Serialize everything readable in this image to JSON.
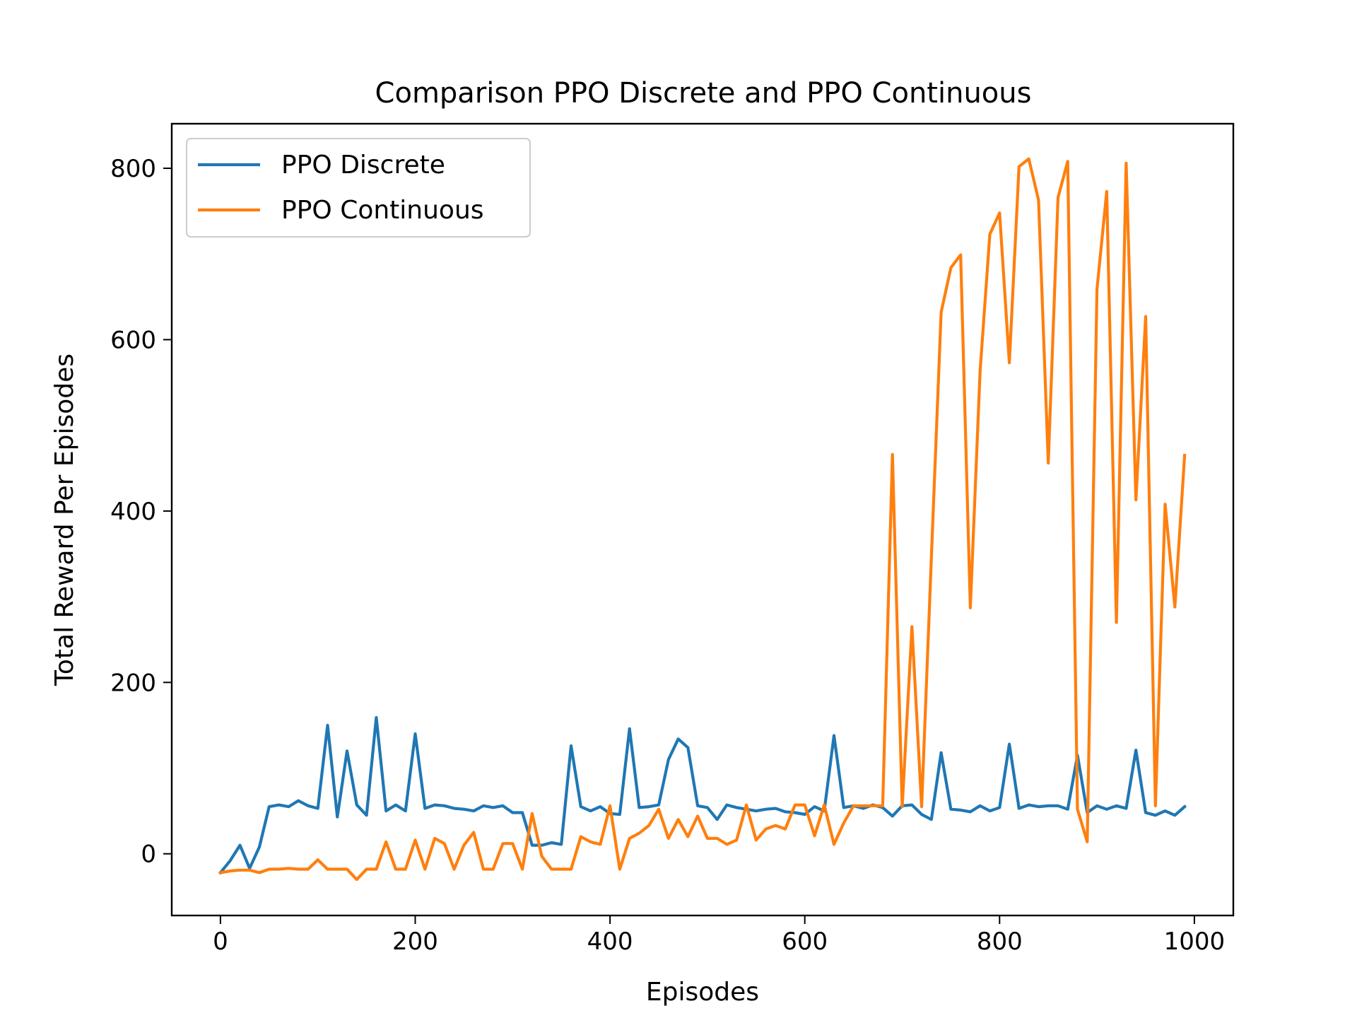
{
  "chart_data": {
    "type": "line",
    "title": "Comparison PPO Discrete and PPO Continuous",
    "xlabel": "Episodes",
    "ylabel": "Total Reward Per Episodes",
    "xlim": [
      -50,
      1040
    ],
    "ylim": [
      -72,
      852
    ],
    "xticks": [
      0,
      200,
      400,
      600,
      800,
      1000
    ],
    "yticks": [
      0,
      200,
      400,
      600,
      800
    ],
    "xtick_labels": [
      "0",
      "200",
      "400",
      "600",
      "800",
      "1000"
    ],
    "ytick_labels": [
      "0",
      "200",
      "400",
      "600",
      "800"
    ],
    "grid": false,
    "legend": "upper-left",
    "x": [
      0,
      10,
      20,
      30,
      40,
      50,
      60,
      70,
      80,
      90,
      100,
      110,
      120,
      130,
      140,
      150,
      160,
      170,
      180,
      190,
      200,
      210,
      220,
      230,
      240,
      250,
      260,
      270,
      280,
      290,
      300,
      310,
      320,
      330,
      340,
      350,
      360,
      370,
      380,
      390,
      400,
      410,
      420,
      430,
      440,
      450,
      460,
      470,
      480,
      490,
      500,
      510,
      520,
      530,
      540,
      550,
      560,
      570,
      580,
      590,
      600,
      610,
      620,
      630,
      640,
      650,
      660,
      670,
      680,
      690,
      700,
      710,
      720,
      730,
      740,
      750,
      760,
      770,
      780,
      790,
      800,
      810,
      820,
      830,
      840,
      850,
      860,
      870,
      880,
      890,
      900,
      910,
      920,
      930,
      940,
      950,
      960,
      970,
      980,
      990
    ],
    "series": [
      {
        "name": "PPO Discrete",
        "color": "#1f77b4",
        "values": [
          -22,
          -8,
          10,
          -17,
          8,
          55,
          57,
          55,
          62,
          56,
          53,
          150,
          43,
          120,
          57,
          45,
          159,
          50,
          57,
          50,
          140,
          53,
          57,
          56,
          53,
          52,
          50,
          56,
          54,
          56,
          48,
          48,
          10,
          10,
          13,
          11,
          126,
          55,
          50,
          55,
          47,
          46,
          146,
          54,
          55,
          57,
          110,
          134,
          124,
          56,
          54,
          40,
          57,
          54,
          52,
          50,
          52,
          53,
          49,
          48,
          46,
          55,
          50,
          138,
          54,
          56,
          53,
          57,
          54,
          44,
          56,
          57,
          46,
          40,
          118,
          52,
          51,
          49,
          56,
          50,
          54,
          128,
          53,
          57,
          55,
          56,
          56,
          52,
          115,
          48,
          56,
          52,
          56,
          53,
          121,
          48,
          45,
          50,
          45,
          55
        ]
      },
      {
        "name": "PPO Continuous",
        "color": "#ff7f0e",
        "values": [
          -22,
          -20,
          -19,
          -19,
          -22,
          -18,
          -18,
          -17,
          -18,
          -18,
          -7,
          -18,
          -18,
          -18,
          -30,
          -18,
          -18,
          14,
          -18,
          -18,
          16,
          -18,
          18,
          12,
          -18,
          10,
          25,
          -18,
          -18,
          12,
          12,
          -18,
          47,
          -3,
          -18,
          -18,
          -18,
          20,
          14,
          11,
          56,
          -18,
          18,
          24,
          33,
          52,
          18,
          40,
          20,
          44,
          18,
          18,
          11,
          16,
          57,
          16,
          29,
          33,
          29,
          57,
          57,
          21,
          57,
          11,
          36,
          56,
          56,
          56,
          56,
          466,
          55,
          265,
          55,
          346,
          632,
          684,
          699,
          287,
          563,
          723,
          748,
          573,
          802,
          811,
          763,
          456,
          766,
          808,
          52,
          14,
          659,
          773,
          270,
          806,
          413,
          627,
          56,
          408,
          288,
          465
        ]
      }
    ]
  }
}
